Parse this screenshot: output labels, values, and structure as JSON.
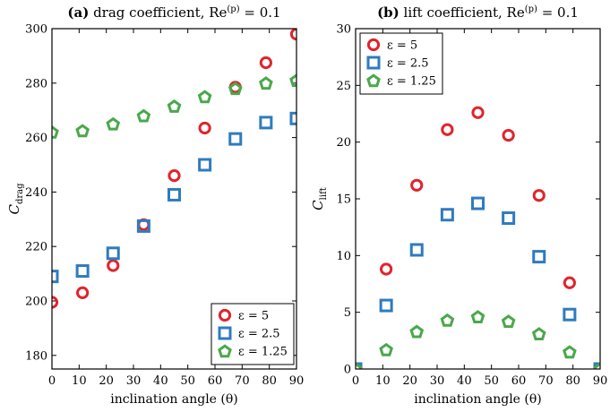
{
  "chart_data": [
    {
      "type": "scatter",
      "title": "(a) drag coefficient, Re^(p) = 0.1",
      "title_bold": "(a)",
      "title_text": "drag coefficient, Re",
      "title_sup": "(p)",
      "title_tail": " = 0.1",
      "xlabel": "inclination angle (θ)",
      "ylabel": "C",
      "ylabel_sub": "drag",
      "xlim": [
        0,
        90
      ],
      "ylim": [
        175,
        300
      ],
      "xticks": [
        0,
        10,
        20,
        30,
        40,
        50,
        60,
        70,
        80,
        90
      ],
      "yticks": [
        180,
        200,
        220,
        240,
        260,
        280,
        300
      ],
      "legend_loc": "lower-right",
      "series": [
        {
          "name": "ε = 5",
          "marker": "circle",
          "color": "#e0242c",
          "x": [
            0,
            11.25,
            22.5,
            33.75,
            45,
            56.25,
            67.5,
            78.75,
            90
          ],
          "values": [
            199.5,
            203,
            213,
            228,
            246,
            263.5,
            278.5,
            287.5,
            298
          ]
        },
        {
          "name": "ε = 2.5",
          "marker": "square",
          "color": "#2f7bbf",
          "x": [
            0,
            11.25,
            22.5,
            33.75,
            45,
            56.25,
            67.5,
            78.75,
            90
          ],
          "values": [
            209,
            211,
            217.5,
            227.5,
            239,
            250,
            259.5,
            265.5,
            267
          ]
        },
        {
          "name": "ε = 1.25",
          "marker": "pentagon",
          "color": "#4aa84a",
          "x": [
            0,
            11.25,
            22.5,
            33.75,
            45,
            56.25,
            67.5,
            78.75,
            90
          ],
          "values": [
            262,
            262.5,
            265,
            268,
            271.5,
            275,
            278,
            280,
            281
          ]
        }
      ]
    },
    {
      "type": "scatter",
      "title": "(b) lift coefficient, Re^(p) = 0.1",
      "title_bold": "(b)",
      "title_text": "lift coefficient, Re",
      "title_sup": "(p)",
      "title_tail": " = 0.1",
      "xlabel": "inclination angle (θ)",
      "ylabel": "C",
      "ylabel_sub": "lift",
      "xlim": [
        0,
        90
      ],
      "ylim": [
        0,
        30
      ],
      "xticks": [
        0,
        10,
        20,
        30,
        40,
        50,
        60,
        70,
        80,
        90
      ],
      "yticks": [
        0,
        5,
        10,
        15,
        20,
        25,
        30
      ],
      "legend_loc": "upper-left",
      "series": [
        {
          "name": "ε = 5",
          "marker": "circle",
          "color": "#e0242c",
          "x": [
            0,
            11.25,
            22.5,
            33.75,
            45,
            56.25,
            67.5,
            78.75,
            90
          ],
          "values": [
            0,
            8.8,
            16.2,
            21.1,
            22.6,
            20.6,
            15.3,
            7.6,
            0
          ]
        },
        {
          "name": "ε = 2.5",
          "marker": "square",
          "color": "#2f7bbf",
          "x": [
            0,
            11.25,
            22.5,
            33.75,
            45,
            56.25,
            67.5,
            78.75,
            90
          ],
          "values": [
            0,
            5.6,
            10.5,
            13.6,
            14.6,
            13.3,
            9.9,
            4.8,
            0
          ]
        },
        {
          "name": "ε = 1.25",
          "marker": "pentagon",
          "color": "#4aa84a",
          "x": [
            0,
            11.25,
            22.5,
            33.75,
            45,
            56.25,
            67.5,
            78.75,
            90
          ],
          "values": [
            0,
            1.7,
            3.3,
            4.3,
            4.6,
            4.2,
            3.1,
            1.5,
            0
          ]
        }
      ]
    }
  ]
}
